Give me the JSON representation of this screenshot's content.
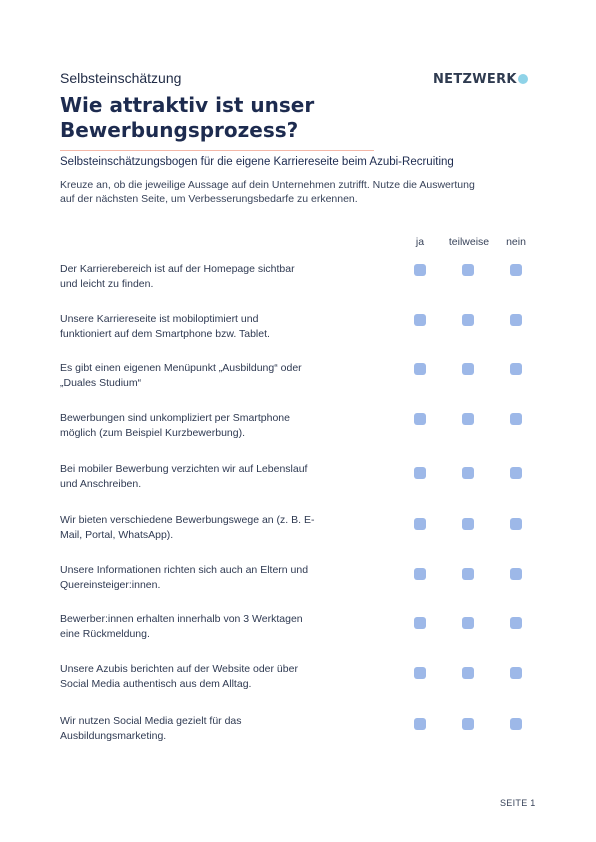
{
  "header": {
    "kicker": "Selbsteinschätzung",
    "title_line1": "Wie attraktiv ist unser",
    "title_line2": "Bewerbungsprozess?",
    "logo_text": "NETZWERK"
  },
  "subtitle": "Selbsteinschätzungsbogen für die eigene Karriereseite beim Azubi-Recruiting",
  "intro": {
    "line1": "Kreuze an, ob die jeweilige Aussage auf dein Unternehmen zutrifft. Nutze die Auswertung",
    "line2": "auf der nächsten Seite, um Verbesserungsbedarfe zu erkennen."
  },
  "columns": {
    "yes": "ja",
    "partly": "teilweise",
    "no": "nein"
  },
  "statements": [
    {
      "line1": "Der Karrierebereich ist auf der Homepage sichtbar",
      "line2": "und leicht zu finden."
    },
    {
      "line1": "Unsere Karriereseite ist mobiloptimiert und",
      "line2": "funktioniert auf dem Smartphone bzw. Tablet."
    },
    {
      "line1": "Es gibt einen eigenen Menüpunkt „Ausbildung“ oder",
      "line2": "„Duales Studium“"
    },
    {
      "line1": "Bewerbungen sind unkompliziert per Smartphone",
      "line2": "möglich (zum Beispiel Kurzbewerbung)."
    },
    {
      "line1": "Bei mobiler Bewerbung verzichten wir auf Lebenslauf",
      "line2": "und Anschreiben."
    },
    {
      "line1": "Wir bieten verschiedene Bewerbungswege an (z. B. E-",
      "line2": "Mail, Portal, WhatsApp)."
    },
    {
      "line1": "Unsere Informationen richten sich auch an Eltern und",
      "line2": "Quereinsteiger:innen."
    },
    {
      "line1": "Bewerber:innen erhalten innerhalb von 3 Werktagen",
      "line2": "eine Rückmeldung."
    },
    {
      "line1": "Unsere Azubis berichten auf der Website oder über",
      "line2": "Social Media authentisch aus dem Alltag."
    },
    {
      "line1": "Wir nutzen Social Media gezielt für das",
      "line2": "Ausbildungsmarketing."
    }
  ],
  "footer": {
    "page_label": "SEITE 1"
  },
  "colors": {
    "checkbox": "#9db8e8",
    "accent_rule": "#f3b7a8",
    "text": "#1d2b4f"
  }
}
